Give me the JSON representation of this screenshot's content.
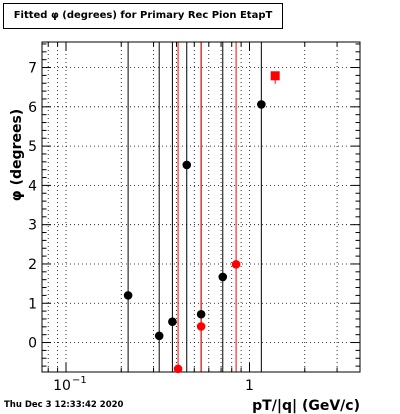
{
  "title": "Fitted φ (degrees) for Primary Rec Pion EtapT",
  "timestamp": "Thu Dec  3 12:33:42 2020",
  "colors": {
    "black_series": "#000000",
    "red_series": "#ff0000",
    "frame": "#000000",
    "grid": "#000000"
  },
  "chart_data": {
    "type": "scatter",
    "title": "Fitted φ (degrees) for Primary Rec Pion EtapT",
    "xlabel": "pT/|q| (GeV/c)",
    "ylabel": "φ (degrees)",
    "x_scale": "log",
    "xlim": [
      0.074,
      4.0
    ],
    "ylim": [
      -0.75,
      7.65
    ],
    "grid": true,
    "x_tick_labels": [
      {
        "value": 0.1,
        "base": "10",
        "exp": "−1"
      },
      {
        "value": 1,
        "label": "1"
      }
    ],
    "y_ticks": [
      0,
      1,
      2,
      3,
      4,
      5,
      6,
      7
    ],
    "series": [
      {
        "color": "#000000",
        "marker": "circle",
        "points": [
          {
            "x": 0.218,
            "y": 1.2
          },
          {
            "x": 0.322,
            "y": 0.17
          },
          {
            "x": 0.38,
            "y": 0.53
          },
          {
            "x": 0.455,
            "y": 4.52
          },
          {
            "x": 0.545,
            "y": 0.72
          },
          {
            "x": 0.715,
            "y": 1.67
          },
          {
            "x": 1.16,
            "y": 6.06
          }
        ]
      },
      {
        "color": "#ff0000",
        "marker": "circle",
        "points": [
          {
            "x": 0.408,
            "y": -0.67
          },
          {
            "x": 0.545,
            "y": 0.41
          },
          {
            "x": 0.845,
            "y": 1.99
          }
        ]
      },
      {
        "color": "#ff0000",
        "marker": "square",
        "points": [
          {
            "x": 1.38,
            "y": 6.79
          }
        ]
      }
    ],
    "vertical_lines": [
      {
        "x": 0.218,
        "color": "#000000"
      },
      {
        "x": 0.322,
        "color": "#000000"
      },
      {
        "x": 0.38,
        "color": "#000000"
      },
      {
        "x": 0.408,
        "color": "#ff0000"
      },
      {
        "x": 0.455,
        "color": "#000000"
      },
      {
        "x": 0.545,
        "color": "#000000"
      },
      {
        "x": 0.545,
        "color": "#ff0000"
      },
      {
        "x": 0.715,
        "color": "#000000"
      },
      {
        "x": 0.845,
        "color": "#ff0000"
      },
      {
        "x": 1.16,
        "color": "#000000"
      }
    ]
  }
}
